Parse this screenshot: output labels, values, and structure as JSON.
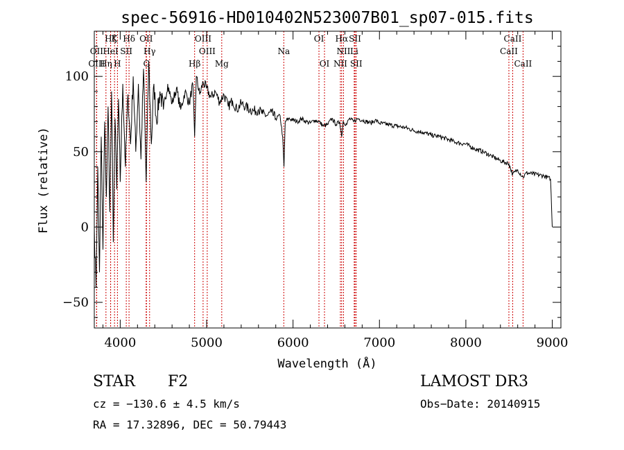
{
  "chart_data": {
    "type": "line",
    "title": "spec-56916-HD010402N523007B01_sp07-015.fits",
    "xlabel": "Wavelength (Å)",
    "ylabel": "Flux (relative)",
    "xlim": [
      3700,
      9100
    ],
    "ylim": [
      -67,
      130
    ],
    "x_ticks": [
      4000,
      5000,
      6000,
      7000,
      8000,
      9000
    ],
    "y_ticks": [
      -50,
      0,
      50,
      100
    ],
    "x_tick_labels": [
      "4000",
      "5000",
      "6000",
      "7000",
      "8000",
      "9000"
    ],
    "y_tick_labels": [
      "−50",
      "0",
      "50",
      "100"
    ],
    "series": [
      {
        "name": "flux",
        "x": [
          3700,
          3720,
          3740,
          3760,
          3780,
          3800,
          3820,
          3840,
          3860,
          3880,
          3900,
          3920,
          3940,
          3960,
          3980,
          4000,
          4030,
          4060,
          4090,
          4120,
          4150,
          4180,
          4210,
          4240,
          4270,
          4300,
          4330,
          4360,
          4390,
          4420,
          4460,
          4500,
          4550,
          4600,
          4650,
          4700,
          4750,
          4800,
          4840,
          4861,
          4880,
          4920,
          4960,
          5000,
          5050,
          5100,
          5150,
          5200,
          5250,
          5300,
          5350,
          5400,
          5450,
          5500,
          5550,
          5600,
          5650,
          5700,
          5750,
          5800,
          5850,
          5880,
          5895,
          5910,
          5950,
          6000,
          6050,
          6100,
          6150,
          6200,
          6250,
          6300,
          6350,
          6400,
          6450,
          6500,
          6540,
          6563,
          6580,
          6620,
          6650,
          6700,
          6750,
          6800,
          6850,
          6900,
          6950,
          7000,
          7100,
          7200,
          7300,
          7400,
          7500,
          7600,
          7700,
          7800,
          7900,
          8000,
          8100,
          8200,
          8300,
          8400,
          8498,
          8542,
          8600,
          8662,
          8700,
          8800,
          8900,
          8980,
          9000
        ],
        "y": [
          0,
          -40,
          40,
          -30,
          60,
          -15,
          70,
          20,
          80,
          10,
          90,
          -10,
          72,
          25,
          85,
          30,
          95,
          40,
          88,
          55,
          100,
          50,
          95,
          45,
          105,
          30,
          110,
          55,
          95,
          70,
          90,
          78,
          95,
          82,
          92,
          78,
          90,
          82,
          95,
          60,
          100,
          88,
          96,
          92,
          86,
          90,
          83,
          88,
          80,
          84,
          78,
          82,
          80,
          78,
          77,
          78,
          75,
          74,
          76,
          72,
          74,
          60,
          40,
          70,
          72,
          71,
          70,
          72,
          70,
          69,
          71,
          70,
          67,
          68,
          72,
          68,
          70,
          60,
          70,
          68,
          72,
          70,
          72,
          71,
          70,
          69,
          71,
          69,
          68,
          67,
          66,
          64,
          63,
          61,
          60,
          58,
          56,
          55,
          52,
          50,
          47,
          44,
          42,
          35,
          38,
          33,
          36,
          35,
          34,
          32,
          0
        ]
      }
    ],
    "line_markers": [
      {
        "label": "Hζ",
        "x": 3889,
        "row": 0
      },
      {
        "label": "OII",
        "x": 3727,
        "row": 1
      },
      {
        "label": "OIII",
        "x": 3727,
        "row": 2
      },
      {
        "label": "K",
        "x": 3934,
        "row": 0
      },
      {
        "label": "HeI",
        "x": 3889,
        "row": 1
      },
      {
        "label": "Hη",
        "x": 3835,
        "row": 2
      },
      {
        "label": "SII",
        "x": 4070,
        "row": 1
      },
      {
        "label": "H",
        "x": 3968,
        "row": 2
      },
      {
        "label": "Hδ",
        "x": 4102,
        "row": 0
      },
      {
        "label": "OII",
        "x": 4300,
        "row": 0
      },
      {
        "label": "Hγ",
        "x": 4340,
        "row": 1
      },
      {
        "label": "G",
        "x": 4304,
        "row": 2
      },
      {
        "label": "OIII",
        "x": 4959,
        "row": 0
      },
      {
        "label": "OIII",
        "x": 5007,
        "row": 1
      },
      {
        "label": "Hβ",
        "x": 4861,
        "row": 2
      },
      {
        "label": "Mg",
        "x": 5175,
        "row": 2
      },
      {
        "label": "Na",
        "x": 5893,
        "row": 1
      },
      {
        "label": "OI",
        "x": 6300,
        "row": 0
      },
      {
        "label": "OI",
        "x": 6364,
        "row": 2
      },
      {
        "label": "Hα",
        "x": 6563,
        "row": 0
      },
      {
        "label": "SII",
        "x": 6717,
        "row": 0
      },
      {
        "label": "NII",
        "x": 6584,
        "row": 1
      },
      {
        "label": "Li",
        "x": 6708,
        "row": 1
      },
      {
        "label": "NII",
        "x": 6548,
        "row": 2
      },
      {
        "label": "SII",
        "x": 6731,
        "row": 2
      },
      {
        "label": "CaII",
        "x": 8542,
        "row": 0
      },
      {
        "label": "CaII",
        "x": 8498,
        "row": 1
      },
      {
        "label": "CaII",
        "x": 8662,
        "row": 2
      }
    ]
  },
  "info": {
    "class": "STAR",
    "subclass": "F2",
    "survey": "LAMOST DR3",
    "cz": "cz = −130.6 ± 4.5 km/s",
    "obs_date": "Obs−Date: 20140915",
    "coords": "RA =  17.32896, DEC =  50.79443"
  }
}
